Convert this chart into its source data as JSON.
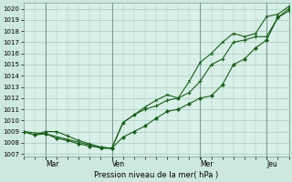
{
  "background_color": "#cce8e0",
  "plot_bg_color": "#d8f0e8",
  "grid_color": "#a8c8c0",
  "line_color": "#1a5e1a",
  "marker_color": "#1a5e1a",
  "xlabel": "Pression niveau de la mer( hPa )",
  "ylim": [
    1006.8,
    1020.5
  ],
  "yticks": [
    1007,
    1008,
    1009,
    1010,
    1011,
    1012,
    1013,
    1014,
    1015,
    1016,
    1017,
    1018,
    1019,
    1020
  ],
  "xtick_positions": [
    0.083,
    0.333,
    0.666,
    0.916
  ],
  "xtick_labels": [
    "Mar",
    "Ven",
    "Mer",
    "Jeu"
  ],
  "vline_positions": [
    0.083,
    0.333,
    0.666,
    0.916
  ],
  "series1_x": [
    0.0,
    0.042,
    0.083,
    0.125,
    0.167,
    0.208,
    0.25,
    0.292,
    0.333,
    0.375,
    0.417,
    0.458,
    0.5,
    0.542,
    0.583,
    0.625,
    0.666,
    0.708,
    0.75,
    0.791,
    0.833,
    0.875,
    0.916,
    0.958,
    1.0
  ],
  "series1_y": [
    1009.0,
    1008.7,
    1008.8,
    1008.4,
    1008.2,
    1007.9,
    1007.7,
    1007.6,
    1007.5,
    1008.5,
    1009.0,
    1009.5,
    1010.2,
    1010.8,
    1011.0,
    1011.5,
    1012.0,
    1012.2,
    1013.2,
    1015.0,
    1015.5,
    1016.5,
    1017.2,
    1019.2,
    1020.0
  ],
  "series2_x": [
    0.0,
    0.042,
    0.083,
    0.125,
    0.167,
    0.208,
    0.25,
    0.292,
    0.333,
    0.375,
    0.417,
    0.458,
    0.5,
    0.542,
    0.583,
    0.625,
    0.666,
    0.708,
    0.75,
    0.791,
    0.833,
    0.875,
    0.916,
    0.958,
    1.0
  ],
  "series2_y": [
    1009.0,
    1008.7,
    1009.0,
    1009.0,
    1008.6,
    1008.2,
    1007.9,
    1007.6,
    1007.5,
    1009.8,
    1010.5,
    1011.0,
    1011.3,
    1011.8,
    1012.0,
    1012.5,
    1013.5,
    1015.0,
    1015.5,
    1017.0,
    1017.2,
    1017.5,
    1017.5,
    1019.2,
    1019.8
  ],
  "series3_x": [
    0.0,
    0.083,
    0.25,
    0.292,
    0.333,
    0.375,
    0.417,
    0.458,
    0.5,
    0.542,
    0.583,
    0.625,
    0.666,
    0.708,
    0.75,
    0.791,
    0.833,
    0.875,
    0.916,
    0.958,
    1.0
  ],
  "series3_y": [
    1009.0,
    1008.8,
    1007.8,
    1007.5,
    1007.5,
    1009.8,
    1010.5,
    1011.2,
    1011.8,
    1012.3,
    1012.0,
    1013.5,
    1015.2,
    1016.0,
    1017.0,
    1017.8,
    1017.5,
    1017.8,
    1019.3,
    1019.5,
    1020.2
  ]
}
